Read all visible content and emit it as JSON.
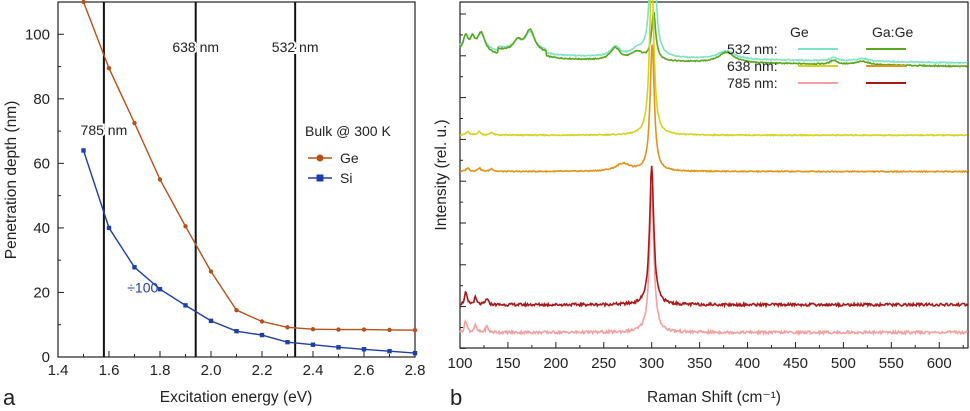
{
  "panel_a_label": "a",
  "panel_b_label": "b",
  "chart_data": [
    {
      "type": "line",
      "panel": "a",
      "xlabel": "Excitation energy (eV)",
      "ylabel": "Penetration depth (nm)",
      "xlim": [
        1.4,
        2.8
      ],
      "ylim": [
        0,
        110
      ],
      "xticks": [
        1.4,
        1.6,
        1.8,
        2.0,
        2.2,
        2.4,
        2.6,
        2.8
      ],
      "xtick_labels": [
        "1.4",
        "1.6",
        "1.8",
        "2.0",
        "2.2",
        "2.4",
        "2.6",
        "2.8"
      ],
      "yticks": [
        0,
        20,
        40,
        60,
        80,
        100
      ],
      "ytick_labels": [
        "0",
        "20",
        "40",
        "60",
        "80",
        "100"
      ],
      "legend_title": "Bulk @ 300 K",
      "series": [
        {
          "name": "Ge",
          "color": "#b8501a",
          "marker": "circle",
          "x": [
            1.5,
            1.6,
            1.7,
            1.8,
            1.9,
            2.0,
            2.1,
            2.2,
            2.3,
            2.4,
            2.5,
            2.6,
            2.7,
            2.8
          ],
          "y": [
            110,
            89.5,
            72.5,
            55,
            40.5,
            26.5,
            14.5,
            11,
            9.2,
            8.6,
            8.5,
            8.5,
            8.4,
            8.3
          ]
        },
        {
          "name": "Si",
          "color": "#1f3ea8",
          "marker": "square",
          "x": [
            1.5,
            1.6,
            1.7,
            1.8,
            1.9,
            2.0,
            2.1,
            2.2,
            2.3,
            2.4,
            2.5,
            2.6,
            2.7,
            2.8
          ],
          "y": [
            64,
            40,
            27.8,
            21,
            16,
            11.2,
            8,
            6.8,
            4.6,
            3.8,
            3,
            2.4,
            1.8,
            1.2
          ]
        }
      ],
      "vlines": [
        {
          "x": 1.58,
          "label": "785 nm"
        },
        {
          "x": 1.94,
          "label": "638 nm"
        },
        {
          "x": 2.33,
          "label": "532 nm"
        }
      ],
      "annotations": [
        {
          "text": "÷100",
          "x": 1.75,
          "y": 20,
          "color": "#1f3ea8"
        }
      ]
    },
    {
      "type": "line",
      "panel": "b",
      "xlabel": "Raman Shift (cm⁻¹)",
      "ylabel": "Intensity (rel. u.)",
      "xlim": [
        100,
        630
      ],
      "xticks": [
        100,
        150,
        200,
        250,
        300,
        350,
        400,
        450,
        500,
        550,
        600
      ],
      "xtick_labels": [
        "100",
        "150",
        "200",
        "250",
        "300",
        "350",
        "400",
        "450",
        "500",
        "550",
        "600"
      ],
      "y_ticks_unlabeled": true,
      "legend_headers": [
        "Ge",
        "Ga:Ge"
      ],
      "legend_rows": [
        "532 nm:",
        "638 nm:",
        "785 nm:"
      ],
      "series": [
        {
          "name": "Ge 532 nm",
          "color": "#7fe3c6",
          "baseline": 0.155,
          "peak": 0.53,
          "peak_center": 301
        },
        {
          "name": "Ga:Ge 532 nm",
          "color": "#5aa61c",
          "baseline": 0.165,
          "peak": 0.14,
          "peak_center": 302
        },
        {
          "name": "Ge 638 nm",
          "color": "#d6d220",
          "baseline": 0.385,
          "peak": 0.48,
          "peak_center": 300
        },
        {
          "name": "Ga:Ge 638 nm",
          "color": "#e0941c",
          "baseline": 0.49,
          "peak": 0.37,
          "peak_center": 300.5
        },
        {
          "name": "Ge 785 nm",
          "color": "#f3a0a0",
          "baseline": 0.955,
          "peak": 0.42,
          "peak_center": 300
        },
        {
          "name": "Ga:Ge 785 nm",
          "color": "#a81a1a",
          "baseline": 0.875,
          "peak": 0.4,
          "peak_center": 300
        }
      ]
    }
  ]
}
